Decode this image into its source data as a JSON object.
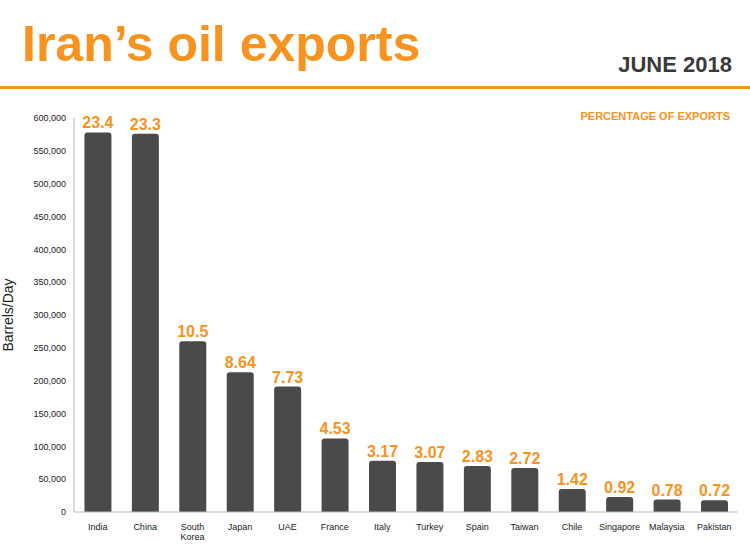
{
  "chart_data": {
    "type": "bar",
    "title": "Iran’s oil exports",
    "subtitle": "JUNE 2018",
    "annotation": "PERCENTAGE OF EXPORTS",
    "y_label": "Barrels/Day",
    "categories": [
      "India",
      "China",
      "South Korea",
      "Japan",
      "UAE",
      "France",
      "Italy",
      "Turkey",
      "Spain",
      "Taiwan",
      "Chile",
      "Singapore",
      "Malaysia",
      "Pakistan"
    ],
    "values": [
      578000,
      576000,
      260000,
      213000,
      191000,
      112000,
      78000,
      76000,
      70000,
      67000,
      35000,
      23000,
      19000,
      18000
    ],
    "percentages": [
      23.4,
      23.3,
      10.5,
      8.64,
      7.73,
      4.53,
      3.17,
      3.07,
      2.83,
      2.72,
      1.42,
      0.92,
      0.78,
      0.72
    ],
    "color": "#4a4a4a",
    "ylim": [
      0,
      600000
    ],
    "yticks": [
      0,
      {
        "value": 50000,
        "label": "50,000"
      },
      {
        "value": 100000,
        "label": "100,000"
      },
      {
        "value": 150000,
        "label": "150,000"
      },
      {
        "value": 200000,
        "label": "200,000"
      },
      {
        "value": 250000,
        "label": "250,000"
      },
      {
        "value": 300000,
        "label": "300,000"
      },
      {
        "value": 350000,
        "label": "350,000"
      },
      {
        "value": 400000,
        "label": "400,000"
      },
      {
        "value": 450000,
        "label": "450,000"
      },
      {
        "value": 500000,
        "label": "500,000"
      },
      {
        "value": 550000,
        "label": "550,000"
      },
      {
        "value": 600000,
        "label": "600,000"
      }
    ],
    "grid": false,
    "data_labels": true
  }
}
